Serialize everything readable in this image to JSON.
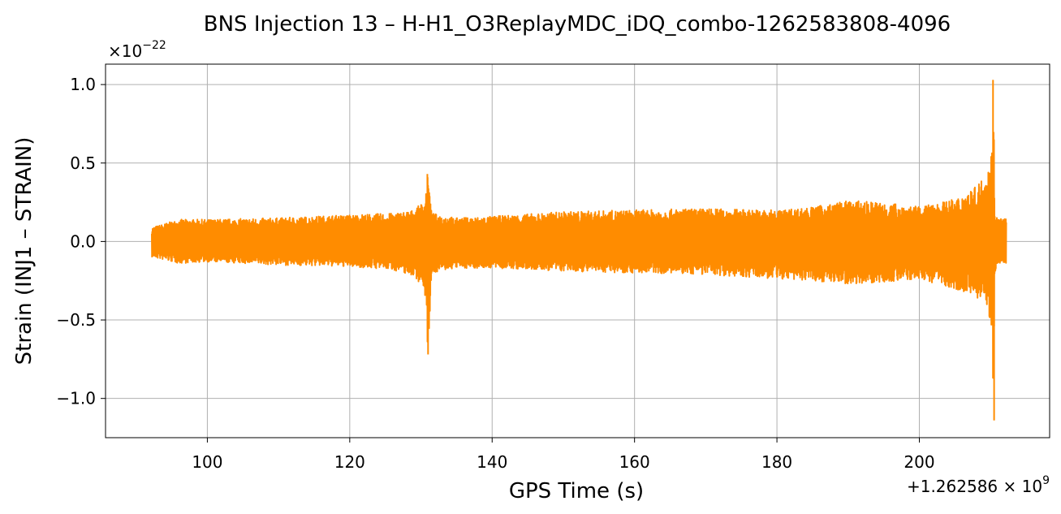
{
  "chart_data": {
    "type": "line",
    "title": "BNS Injection 13 – H-H1_O3ReplayMDC_iDQ_combo-1262583808-4096",
    "xlabel": "GPS Time (s)",
    "ylabel": "Strain (INJ1 – STRAIN)",
    "x_offset_label": "+1.262586 × 10",
    "x_offset_exponent": "9",
    "y_scale_label": "×10",
    "y_scale_exponent": "−22",
    "xlim": [
      85.7,
      218.3
    ],
    "ylim": [
      -1.25,
      1.13
    ],
    "xticks": [
      100,
      120,
      140,
      160,
      180,
      200
    ],
    "xtick_labels": [
      "100",
      "120",
      "140",
      "160",
      "180",
      "200"
    ],
    "yticks": [
      -1.0,
      -0.5,
      0.0,
      0.5,
      1.0
    ],
    "ytick_labels": [
      "−1.0",
      "−0.5",
      "0.0",
      "0.5",
      "1.0"
    ],
    "grid": true,
    "series": [
      {
        "color": "#ff8c00",
        "x_range": [
          92.2,
          212.2
        ],
        "envelope": {
          "x": [
            92.2,
            96,
            100,
            110,
            120,
            126,
            129,
            130.5,
            131.0,
            131.5,
            135,
            140,
            150,
            160,
            170,
            180,
            185,
            190,
            195,
            200,
            205,
            208,
            209.5,
            210.2,
            210.4,
            210.6,
            211,
            212.2
          ],
          "upper": [
            0.09,
            0.14,
            0.14,
            0.15,
            0.17,
            0.18,
            0.2,
            0.26,
            0.43,
            0.18,
            0.15,
            0.16,
            0.19,
            0.2,
            0.21,
            0.2,
            0.22,
            0.26,
            0.25,
            0.22,
            0.27,
            0.35,
            0.45,
            0.6,
            1.03,
            0.2,
            0.15,
            0.15
          ],
          "lower": [
            -0.1,
            -0.14,
            -0.13,
            -0.15,
            -0.16,
            -0.18,
            -0.22,
            -0.3,
            -0.72,
            -0.2,
            -0.17,
            -0.17,
            -0.19,
            -0.2,
            -0.21,
            -0.24,
            -0.25,
            -0.27,
            -0.26,
            -0.24,
            -0.3,
            -0.35,
            -0.43,
            -0.55,
            -1.14,
            -0.2,
            -0.14,
            -0.14
          ]
        }
      }
    ]
  }
}
